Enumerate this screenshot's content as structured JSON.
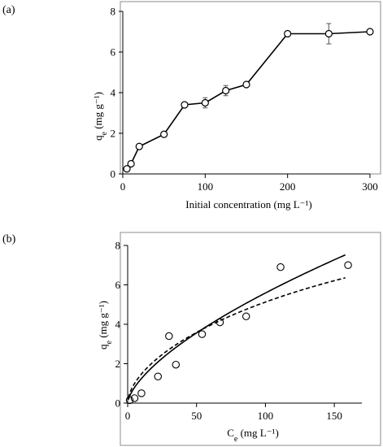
{
  "chart_data": [
    {
      "type": "line",
      "panel_label": "(a)",
      "xlabel": "Initial concentration (mg L⁻¹)",
      "ylabel_main": "q",
      "ylabel_sub": "e",
      "ylabel_unit": " (mg g⁻¹)",
      "xlim": [
        0,
        300
      ],
      "ylim": [
        0,
        8
      ],
      "xticks": [
        0,
        100,
        200,
        300
      ],
      "yticks": [
        0,
        2,
        4,
        6,
        8
      ],
      "grid": false,
      "series": [
        {
          "x": [
            5,
            10,
            20,
            50,
            75,
            100,
            125,
            150,
            200,
            250,
            300
          ],
          "y": [
            0.25,
            0.5,
            1.35,
            1.95,
            3.4,
            3.5,
            4.1,
            4.4,
            6.9,
            6.9,
            7.0
          ],
          "yerr": [
            0.08,
            0.08,
            0.1,
            0.1,
            0.12,
            0.25,
            0.25,
            0.1,
            0.12,
            0.5,
            0.08
          ],
          "marker": "circle",
          "line": "solid"
        }
      ]
    },
    {
      "type": "scatter",
      "panel_label": "(b)",
      "xlabel_main": "C",
      "xlabel_sub": "e",
      "xlabel_unit": " (mg L⁻¹)",
      "ylabel_main": "q",
      "ylabel_sub": "e",
      "ylabel_unit": " (mg g⁻¹)",
      "xlim": [
        0,
        170
      ],
      "ylim": [
        0,
        8
      ],
      "xticks": [
        0,
        50,
        100,
        150
      ],
      "yticks": [
        0,
        2,
        4,
        6,
        8
      ],
      "grid": false,
      "points": {
        "x": [
          1.5,
          5,
          10,
          22,
          30,
          35,
          54,
          67,
          86,
          111,
          160
        ],
        "y": [
          0.15,
          0.25,
          0.5,
          1.35,
          3.4,
          1.95,
          3.5,
          4.1,
          4.4,
          6.9,
          7.0
        ]
      },
      "fits": [
        {
          "style": "solid",
          "model": "power",
          "k": 0.28,
          "n": 0.65
        },
        {
          "style": "dashed",
          "model": "saturating",
          "k": 0.4,
          "n": 0.57
        }
      ],
      "fit_x_range": [
        0.5,
        158
      ]
    }
  ]
}
